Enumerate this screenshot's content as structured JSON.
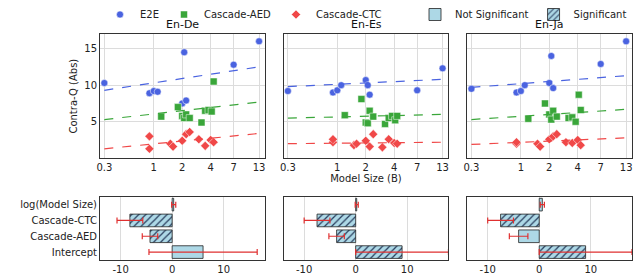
{
  "chart_data": [
    {
      "type": "scatter",
      "title": "En-De",
      "ylabel": "Contra-Q (Abs)",
      "log": "x",
      "grid": true,
      "legend": "top left",
      "xlim": [
        0.27,
        15
      ],
      "xticks": [
        0.3,
        1,
        2,
        4,
        7,
        13
      ],
      "ylim": [
        0,
        17
      ],
      "yticks": [
        5,
        10,
        15
      ],
      "series": [
        {
          "name": "E2E",
          "color": "#4a63e0",
          "marker": "circle",
          "x": [
            0.3,
            0.9,
            1.0,
            1.1,
            2.0,
            2.1,
            2.2,
            7,
            13
          ],
          "values": [
            10.3,
            8.9,
            9.2,
            9.1,
            7.5,
            14.5,
            7.9,
            12.8,
            16.0
          ],
          "trend": {
            "x": [
              0.3,
              13
            ],
            "values": [
              9.3,
              12.5
            ],
            "line_style": "dashed"
          }
        },
        {
          "name": "Cascade-AED",
          "color": "#3aa63a",
          "marker": "square",
          "x": [
            1.2,
            1.8,
            2.0,
            2.1,
            2.2,
            2.4,
            3.2,
            3.5,
            3.8,
            4.1,
            4.3
          ],
          "values": [
            5.7,
            7.0,
            5.8,
            5.5,
            6.0,
            5.5,
            4.9,
            6.5,
            6.6,
            6.4,
            10.5
          ],
          "trend": {
            "x": [
              0.3,
              13
            ],
            "values": [
              5.3,
              7.7
            ],
            "line_style": "dashed"
          }
        },
        {
          "name": "Cascade-CTC",
          "color": "#f04848",
          "marker": "diamond",
          "x": [
            0.9,
            0.9,
            1.5,
            1.6,
            2.0,
            2.2,
            2.4,
            3.0,
            3.5,
            4.0,
            4.3
          ],
          "values": [
            3.0,
            1.3,
            2.0,
            1.6,
            2.4,
            3.3,
            3.6,
            2.6,
            1.7,
            2.5,
            2.2
          ],
          "trend": {
            "x": [
              0.3,
              13
            ],
            "values": [
              1.3,
              3.4
            ],
            "line_style": "dashed"
          }
        }
      ]
    },
    {
      "type": "scatter",
      "title": "En-Es",
      "xlabel": "Model Size (B)",
      "log": "x",
      "grid": true,
      "tick_labels": "x",
      "xlim": [
        0.27,
        15
      ],
      "xticks": [
        0.3,
        1,
        2,
        4,
        7,
        13
      ],
      "ylim": [
        0,
        17
      ],
      "yticks": [
        5,
        10,
        15
      ],
      "series": [
        {
          "name": "E2E",
          "color": "#4a63e0",
          "marker": "circle",
          "x": [
            0.3,
            0.9,
            1.0,
            1.1,
            2.0,
            2.1,
            2.2,
            7,
            13
          ],
          "values": [
            9.2,
            9.0,
            9.3,
            10.0,
            10.7,
            10.0,
            8.7,
            9.3,
            12.3
          ],
          "trend": {
            "x": [
              0.3,
              13
            ],
            "values": [
              9.8,
              10.8
            ],
            "line_style": "dashed"
          }
        },
        {
          "name": "Cascade-AED",
          "color": "#3aa63a",
          "marker": "square",
          "x": [
            1.2,
            1.8,
            2.0,
            2.1,
            2.2,
            2.4,
            3.2,
            3.5,
            3.8,
            4.1,
            4.3
          ],
          "values": [
            5.9,
            8.1,
            4.9,
            4.8,
            6.5,
            5.7,
            4.7,
            5.5,
            5.8,
            5.2,
            5.8
          ],
          "trend": {
            "x": [
              0.3,
              13
            ],
            "values": [
              5.5,
              6.0
            ],
            "line_style": "dashed"
          }
        },
        {
          "name": "Cascade-CTC",
          "color": "#f04848",
          "marker": "diamond",
          "x": [
            0.9,
            0.9,
            1.5,
            1.6,
            2.0,
            2.2,
            2.4,
            3.0,
            3.5,
            4.0,
            4.3
          ],
          "values": [
            2.2,
            2.6,
            1.8,
            2.0,
            2.4,
            1.6,
            3.3,
            1.5,
            2.6,
            2.1,
            2.0
          ],
          "trend": {
            "x": [
              0.3,
              13
            ],
            "values": [
              2.0,
              2.2
            ],
            "line_style": "dashed"
          }
        }
      ]
    },
    {
      "type": "scatter",
      "title": "En-Ja",
      "log": "x",
      "grid": true,
      "tick_labels": "x",
      "xlim": [
        0.27,
        15
      ],
      "xticks": [
        0.3,
        1,
        2,
        4,
        7,
        13
      ],
      "ylim": [
        0,
        17
      ],
      "yticks": [
        5,
        10,
        15
      ],
      "series": [
        {
          "name": "E2E",
          "color": "#4a63e0",
          "marker": "circle",
          "x": [
            0.3,
            0.9,
            1.0,
            1.1,
            2.0,
            2.1,
            2.2,
            7,
            13
          ],
          "values": [
            9.5,
            9.0,
            9.2,
            10.0,
            10.3,
            14.0,
            9.6,
            12.9,
            16.0
          ],
          "trend": {
            "x": [
              0.3,
              13
            ],
            "values": [
              9.7,
              11.3
            ],
            "line_style": "dashed"
          }
        },
        {
          "name": "Cascade-AED",
          "color": "#3aa63a",
          "marker": "square",
          "x": [
            1.2,
            1.8,
            2.0,
            2.1,
            2.2,
            2.4,
            3.2,
            3.5,
            3.8,
            4.1,
            4.3
          ],
          "values": [
            5.4,
            7.5,
            6.0,
            5.3,
            6.5,
            5.7,
            5.5,
            5.6,
            5.0,
            8.7,
            6.6
          ],
          "trend": {
            "x": [
              0.3,
              13
            ],
            "values": [
              5.3,
              6.7
            ],
            "line_style": "dashed"
          }
        },
        {
          "name": "Cascade-CTC",
          "color": "#f04848",
          "marker": "diamond",
          "x": [
            0.9,
            0.9,
            1.5,
            1.6,
            2.0,
            2.2,
            2.4,
            3.0,
            3.5,
            4.0,
            4.3
          ],
          "values": [
            2.0,
            2.2,
            2.0,
            1.6,
            2.6,
            3.0,
            3.3,
            2.2,
            2.1,
            2.5,
            1.8
          ],
          "trend": {
            "x": [
              0.3,
              13
            ],
            "values": [
              1.9,
              2.8
            ],
            "line_style": "dashed"
          }
        }
      ]
    },
    {
      "type": "bar",
      "orientation": "horizontal",
      "grid": true,
      "categories": [
        "log(Model Size)",
        "Cascade-CTC",
        "Cascade-AED",
        "Intercept"
      ],
      "xlim": [
        -14,
        18
      ],
      "xticks": [
        -10,
        0,
        10
      ],
      "series": [
        {
          "name": "Not Significant",
          "color": "#add8e6",
          "marker": "plain",
          "values": [
            0.3,
            null,
            null,
            6.0
          ],
          "errors": [
            0.4,
            null,
            null,
            10.5
          ]
        },
        {
          "name": "Significant",
          "color": "#add8e6",
          "marker": "hatched",
          "values": [
            null,
            -8.2,
            -4.3,
            null
          ],
          "errors": [
            null,
            2.5,
            1.5,
            null
          ]
        }
      ]
    },
    {
      "type": "bar",
      "orientation": "horizontal",
      "grid": true,
      "tick_labels": "x",
      "categories": [
        "log(Model Size)",
        "Cascade-CTC",
        "Cascade-AED",
        "Intercept"
      ],
      "xlim": [
        -14,
        18
      ],
      "xticks": [
        -10,
        0,
        10
      ],
      "series": [
        {
          "name": "Not Significant",
          "color": "#add8e6",
          "marker": "plain",
          "values": [
            0.2,
            null,
            null,
            null
          ],
          "errors": [
            0.3,
            null,
            null,
            null
          ]
        },
        {
          "name": "Significant",
          "color": "#add8e6",
          "marker": "hatched",
          "values": [
            null,
            -7.5,
            -3.7,
            9.0
          ],
          "errors": [
            null,
            2.5,
            1.5,
            9.0
          ]
        }
      ]
    },
    {
      "type": "bar",
      "orientation": "horizontal",
      "grid": true,
      "tick_labels": "x",
      "legend": "top right",
      "categories": [
        "log(Model Size)",
        "Cascade-CTC",
        "Cascade-AED",
        "Intercept"
      ],
      "xlim": [
        -14,
        18
      ],
      "xticks": [
        -10,
        0,
        10
      ],
      "series": [
        {
          "name": "Not Significant",
          "color": "#add8e6",
          "marker": "plain",
          "values": [
            0.6,
            null,
            -4.0,
            null
          ],
          "errors": [
            0.4,
            null,
            1.8,
            null
          ]
        },
        {
          "name": "Significant",
          "color": "#add8e6",
          "marker": "hatched",
          "values": [
            null,
            -7.5,
            null,
            9.0
          ],
          "errors": [
            null,
            2.5,
            null,
            9.0
          ]
        }
      ]
    }
  ]
}
